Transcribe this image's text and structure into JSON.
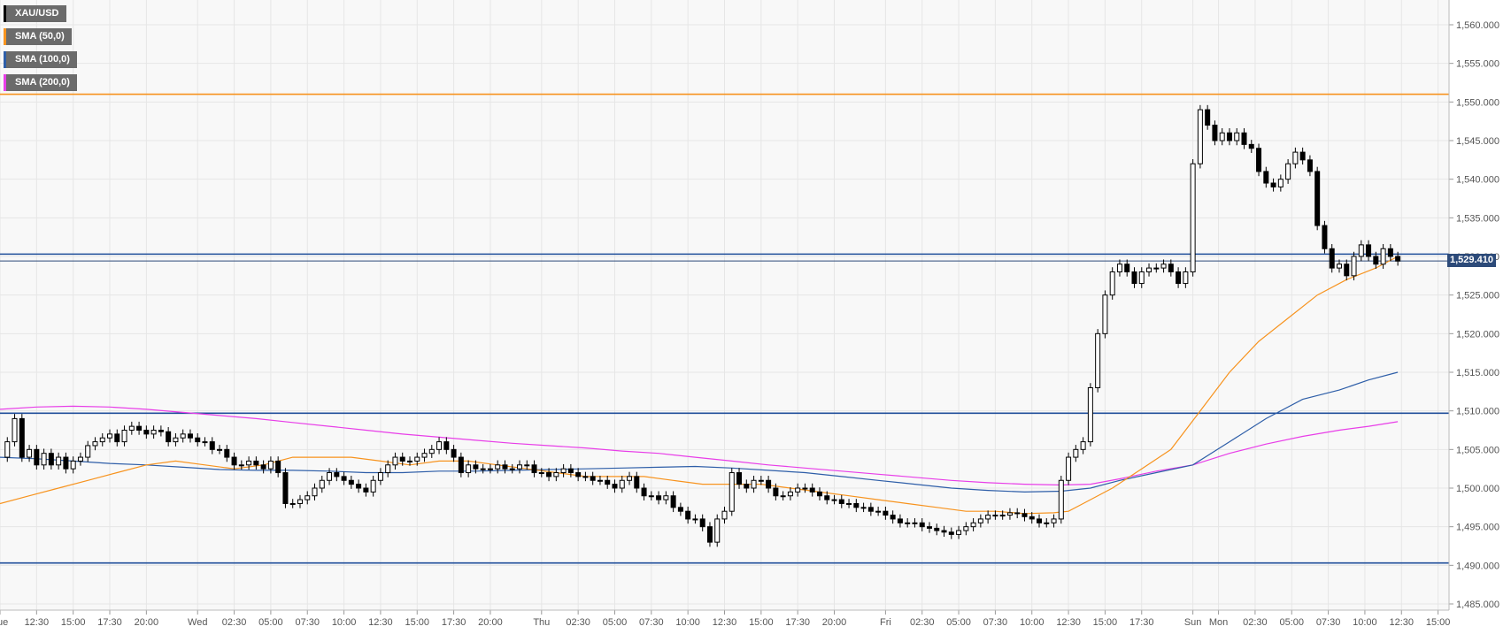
{
  "chart_data": {
    "type": "candlestick",
    "symbol": "XAU/USD",
    "legend": [
      {
        "label": "XAU/USD",
        "color": "#000000"
      },
      {
        "label": "SMA (50,0)",
        "color": "#f7931e"
      },
      {
        "label": "SMA (100,0)",
        "color": "#2e5ea8"
      },
      {
        "label": "SMA (200,0)",
        "color": "#e83ee8"
      }
    ],
    "last_price_label": "1,529.410",
    "last_price": 1529.41,
    "ylim": [
      1485,
      1562
    ],
    "y_ticks": [
      1485,
      1490,
      1495,
      1500,
      1505,
      1510,
      1515,
      1520,
      1525,
      1530,
      1535,
      1540,
      1545,
      1550,
      1555,
      1560
    ],
    "y_tick_labels": [
      "1,485.000",
      "1,490.000",
      "1,495.000",
      "1,500.000",
      "1,505.000",
      "1,510.000",
      "1,515.000",
      "1,520.000",
      "1,525.000",
      "1,530.000",
      "1,535.000",
      "1,540.000",
      "1,545.000",
      "1,550.000",
      "1,555.000",
      "1,560.000"
    ],
    "x_ticks": [
      {
        "t": 0,
        "label": "Tue"
      },
      {
        "t": 10,
        "label": "12:30"
      },
      {
        "t": 20,
        "label": "15:00"
      },
      {
        "t": 30,
        "label": "17:30"
      },
      {
        "t": 40,
        "label": "20:00"
      },
      {
        "t": 54,
        "label": "Wed"
      },
      {
        "t": 64,
        "label": "02:30"
      },
      {
        "t": 74,
        "label": "05:00"
      },
      {
        "t": 84,
        "label": "07:30"
      },
      {
        "t": 94,
        "label": "10:00"
      },
      {
        "t": 104,
        "label": "12:30"
      },
      {
        "t": 114,
        "label": "15:00"
      },
      {
        "t": 124,
        "label": "17:30"
      },
      {
        "t": 134,
        "label": "20:00"
      },
      {
        "t": 148,
        "label": "Thu"
      },
      {
        "t": 158,
        "label": "02:30"
      },
      {
        "t": 168,
        "label": "05:00"
      },
      {
        "t": 178,
        "label": "07:30"
      },
      {
        "t": 188,
        "label": "10:00"
      },
      {
        "t": 198,
        "label": "12:30"
      },
      {
        "t": 208,
        "label": "15:00"
      },
      {
        "t": 218,
        "label": "17:30"
      },
      {
        "t": 228,
        "label": "20:00"
      },
      {
        "t": 242,
        "label": "Fri"
      },
      {
        "t": 252,
        "label": "02:30"
      },
      {
        "t": 262,
        "label": "05:00"
      },
      {
        "t": 272,
        "label": "07:30"
      },
      {
        "t": 282,
        "label": "10:00"
      },
      {
        "t": 292,
        "label": "12:30"
      },
      {
        "t": 302,
        "label": "15:00"
      },
      {
        "t": 312,
        "label": "17:30"
      },
      {
        "t": 326,
        "label": "Sun"
      },
      {
        "t": 333,
        "label": "Mon"
      },
      {
        "t": 343,
        "label": "02:30"
      },
      {
        "t": 353,
        "label": "05:00"
      },
      {
        "t": 363,
        "label": "07:30"
      },
      {
        "t": 373,
        "label": "10:00"
      },
      {
        "t": 383,
        "label": "12:30"
      },
      {
        "t": 393,
        "label": "15:00"
      }
    ],
    "x_range": [
      0,
      396
    ],
    "horizontal_levels": [
      {
        "value": 1551,
        "color": "#f7931e"
      },
      {
        "value": 1530.3,
        "color": "#1f4e9a"
      },
      {
        "value": 1509.7,
        "color": "#1f4e9a"
      },
      {
        "value": 1490.3,
        "color": "#1f4e9a"
      }
    ],
    "candle_close_path": [
      [
        0,
        1504
      ],
      [
        2,
        1506
      ],
      [
        4,
        1509
      ],
      [
        6,
        1504
      ],
      [
        8,
        1505
      ],
      [
        10,
        1503
      ],
      [
        12,
        1504.5
      ],
      [
        14,
        1503
      ],
      [
        16,
        1504
      ],
      [
        18,
        1502.5
      ],
      [
        20,
        1503.5
      ],
      [
        22,
        1504
      ],
      [
        24,
        1505.5
      ],
      [
        26,
        1506
      ],
      [
        28,
        1506.5
      ],
      [
        30,
        1507
      ],
      [
        32,
        1506
      ],
      [
        34,
        1507.5
      ],
      [
        36,
        1508
      ],
      [
        38,
        1507.5
      ],
      [
        40,
        1507
      ],
      [
        42,
        1507.5
      ],
      [
        44,
        1507.3
      ],
      [
        46,
        1506
      ],
      [
        48,
        1506.5
      ],
      [
        50,
        1507
      ],
      [
        52,
        1506.5
      ],
      [
        54,
        1506
      ],
      [
        56,
        1506
      ],
      [
        58,
        1505
      ],
      [
        60,
        1505
      ],
      [
        62,
        1504
      ],
      [
        64,
        1503
      ],
      [
        66,
        1503
      ],
      [
        68,
        1503.5
      ],
      [
        70,
        1503
      ],
      [
        72,
        1502.5
      ],
      [
        74,
        1503.5
      ],
      [
        76,
        1502
      ],
      [
        78,
        1498
      ],
      [
        80,
        1498
      ],
      [
        82,
        1498.5
      ],
      [
        84,
        1499
      ],
      [
        86,
        1500
      ],
      [
        88,
        1501
      ],
      [
        90,
        1502
      ],
      [
        92,
        1501.5
      ],
      [
        94,
        1501
      ],
      [
        96,
        1500.5
      ],
      [
        98,
        1500
      ],
      [
        100,
        1499.5
      ],
      [
        102,
        1501
      ],
      [
        104,
        1502
      ],
      [
        106,
        1503
      ],
      [
        108,
        1504
      ],
      [
        110,
        1503.5
      ],
      [
        112,
        1503.5
      ],
      [
        114,
        1504
      ],
      [
        116,
        1504.5
      ],
      [
        118,
        1505
      ],
      [
        120,
        1506
      ],
      [
        122,
        1505
      ],
      [
        124,
        1504
      ],
      [
        126,
        1502
      ],
      [
        128,
        1503
      ],
      [
        130,
        1502.5
      ],
      [
        132,
        1502.5
      ],
      [
        134,
        1502.5
      ],
      [
        136,
        1503
      ],
      [
        138,
        1502.5
      ],
      [
        140,
        1502.5
      ],
      [
        142,
        1503
      ],
      [
        144,
        1503
      ],
      [
        146,
        1502
      ],
      [
        148,
        1502
      ],
      [
        150,
        1501.5
      ],
      [
        152,
        1502
      ],
      [
        154,
        1502.5
      ],
      [
        156,
        1502
      ],
      [
        158,
        1501.5
      ],
      [
        160,
        1501.5
      ],
      [
        162,
        1501
      ],
      [
        164,
        1501
      ],
      [
        166,
        1500.5
      ],
      [
        168,
        1500
      ],
      [
        170,
        1501
      ],
      [
        172,
        1501.5
      ],
      [
        174,
        1500
      ],
      [
        176,
        1499
      ],
      [
        178,
        1499
      ],
      [
        180,
        1498.5
      ],
      [
        182,
        1499
      ],
      [
        184,
        1497.5
      ],
      [
        186,
        1497
      ],
      [
        188,
        1496
      ],
      [
        190,
        1496
      ],
      [
        192,
        1495
      ],
      [
        194,
        1493
      ],
      [
        196,
        1496
      ],
      [
        198,
        1497
      ],
      [
        200,
        1502
      ],
      [
        202,
        1500.5
      ],
      [
        204,
        1500
      ],
      [
        206,
        1501
      ],
      [
        208,
        1501
      ],
      [
        210,
        1500
      ],
      [
        212,
        1499
      ],
      [
        214,
        1499
      ],
      [
        216,
        1499.5
      ],
      [
        218,
        1500
      ],
      [
        220,
        1500
      ],
      [
        222,
        1499.5
      ],
      [
        224,
        1499
      ],
      [
        226,
        1498.5
      ],
      [
        228,
        1498.5
      ],
      [
        230,
        1498
      ],
      [
        232,
        1498
      ],
      [
        234,
        1497.5
      ],
      [
        236,
        1497.5
      ],
      [
        238,
        1497
      ],
      [
        240,
        1497
      ],
      [
        242,
        1496.5
      ],
      [
        244,
        1496
      ],
      [
        246,
        1495.5
      ],
      [
        248,
        1495.5
      ],
      [
        250,
        1495.5
      ],
      [
        252,
        1495
      ],
      [
        254,
        1494.8
      ],
      [
        256,
        1494.5
      ],
      [
        258,
        1494.3
      ],
      [
        260,
        1494
      ],
      [
        262,
        1494.5
      ],
      [
        264,
        1495
      ],
      [
        266,
        1495.5
      ],
      [
        268,
        1496
      ],
      [
        270,
        1496.5
      ],
      [
        272,
        1496.5
      ],
      [
        274,
        1496.5
      ],
      [
        276,
        1496.8
      ],
      [
        278,
        1496.7
      ],
      [
        280,
        1496.3
      ],
      [
        282,
        1496
      ],
      [
        284,
        1495.5
      ],
      [
        286,
        1495.5
      ],
      [
        288,
        1496
      ],
      [
        290,
        1501
      ],
      [
        292,
        1504
      ],
      [
        294,
        1505
      ],
      [
        296,
        1506
      ],
      [
        298,
        1513
      ],
      [
        300,
        1520
      ],
      [
        302,
        1525
      ],
      [
        304,
        1528
      ],
      [
        306,
        1529
      ],
      [
        308,
        1528
      ],
      [
        310,
        1526.5
      ],
      [
        312,
        1528
      ],
      [
        314,
        1528.5
      ],
      [
        316,
        1528.5
      ],
      [
        318,
        1529
      ],
      [
        320,
        1528
      ],
      [
        322,
        1526.5
      ],
      [
        324,
        1528
      ],
      [
        326,
        1542
      ],
      [
        328,
        1549
      ],
      [
        330,
        1547
      ],
      [
        332,
        1545
      ],
      [
        334,
        1546
      ],
      [
        336,
        1545
      ],
      [
        338,
        1546
      ],
      [
        340,
        1544.5
      ],
      [
        342,
        1544
      ],
      [
        344,
        1541
      ],
      [
        346,
        1539.5
      ],
      [
        348,
        1539
      ],
      [
        350,
        1540
      ],
      [
        352,
        1542
      ],
      [
        354,
        1543.5
      ],
      [
        356,
        1542.5
      ],
      [
        358,
        1541
      ],
      [
        360,
        1534
      ],
      [
        362,
        1531
      ],
      [
        364,
        1528.5
      ],
      [
        366,
        1529
      ],
      [
        368,
        1527.5
      ],
      [
        370,
        1530
      ],
      [
        372,
        1531.5
      ],
      [
        374,
        1530
      ],
      [
        376,
        1529
      ],
      [
        378,
        1531
      ],
      [
        380,
        1530
      ],
      [
        382,
        1529.4
      ]
    ],
    "sma_50": [
      [
        0,
        1498
      ],
      [
        8,
        1499
      ],
      [
        16,
        1500
      ],
      [
        24,
        1501
      ],
      [
        32,
        1502
      ],
      [
        40,
        1503
      ],
      [
        48,
        1503.5
      ],
      [
        56,
        1503
      ],
      [
        64,
        1502.5
      ],
      [
        72,
        1503
      ],
      [
        80,
        1504
      ],
      [
        88,
        1504
      ],
      [
        96,
        1504
      ],
      [
        104,
        1503.5
      ],
      [
        112,
        1503
      ],
      [
        120,
        1503.5
      ],
      [
        128,
        1503.5
      ],
      [
        136,
        1503
      ],
      [
        144,
        1502.5
      ],
      [
        152,
        1502
      ],
      [
        160,
        1501.5
      ],
      [
        168,
        1501.5
      ],
      [
        176,
        1501.5
      ],
      [
        184,
        1501
      ],
      [
        192,
        1500.5
      ],
      [
        200,
        1500.5
      ],
      [
        208,
        1500.5
      ],
      [
        216,
        1500
      ],
      [
        224,
        1499.5
      ],
      [
        232,
        1499
      ],
      [
        240,
        1498.5
      ],
      [
        248,
        1498
      ],
      [
        256,
        1497.5
      ],
      [
        264,
        1497
      ],
      [
        272,
        1497
      ],
      [
        280,
        1496.7
      ],
      [
        288,
        1496.8
      ],
      [
        292,
        1497
      ],
      [
        296,
        1498
      ],
      [
        304,
        1500
      ],
      [
        312,
        1502.5
      ],
      [
        320,
        1505
      ],
      [
        328,
        1510
      ],
      [
        336,
        1515
      ],
      [
        344,
        1519
      ],
      [
        352,
        1522
      ],
      [
        360,
        1525
      ],
      [
        368,
        1527
      ],
      [
        376,
        1528.5
      ],
      [
        382,
        1530
      ]
    ],
    "sma_100": [
      [
        0,
        1504
      ],
      [
        10,
        1503.8
      ],
      [
        20,
        1503.5
      ],
      [
        30,
        1503.2
      ],
      [
        40,
        1503
      ],
      [
        50,
        1502.7
      ],
      [
        60,
        1502.4
      ],
      [
        70,
        1502.3
      ],
      [
        80,
        1502.3
      ],
      [
        90,
        1502.2
      ],
      [
        100,
        1502
      ],
      [
        110,
        1502
      ],
      [
        120,
        1502.2
      ],
      [
        130,
        1502.2
      ],
      [
        140,
        1502.3
      ],
      [
        150,
        1502.4
      ],
      [
        160,
        1502.5
      ],
      [
        170,
        1502.6
      ],
      [
        180,
        1502.7
      ],
      [
        190,
        1502.8
      ],
      [
        200,
        1502.6
      ],
      [
        210,
        1502.3
      ],
      [
        220,
        1502
      ],
      [
        230,
        1501.5
      ],
      [
        240,
        1501
      ],
      [
        250,
        1500.5
      ],
      [
        260,
        1500
      ],
      [
        270,
        1499.7
      ],
      [
        280,
        1499.5
      ],
      [
        290,
        1499.6
      ],
      [
        298,
        1500
      ],
      [
        306,
        1501
      ],
      [
        316,
        1502
      ],
      [
        326,
        1503
      ],
      [
        336,
        1506
      ],
      [
        346,
        1509
      ],
      [
        356,
        1511.5
      ],
      [
        366,
        1512.7
      ],
      [
        374,
        1514
      ],
      [
        382,
        1515
      ]
    ],
    "sma_200": [
      [
        0,
        1510.2
      ],
      [
        10,
        1510.5
      ],
      [
        20,
        1510.6
      ],
      [
        30,
        1510.5
      ],
      [
        40,
        1510.2
      ],
      [
        50,
        1509.8
      ],
      [
        60,
        1509.4
      ],
      [
        70,
        1509
      ],
      [
        80,
        1508.5
      ],
      [
        90,
        1508
      ],
      [
        100,
        1507.5
      ],
      [
        110,
        1507
      ],
      [
        120,
        1506.6
      ],
      [
        130,
        1506.2
      ],
      [
        140,
        1505.8
      ],
      [
        150,
        1505.5
      ],
      [
        160,
        1505.2
      ],
      [
        170,
        1504.8
      ],
      [
        180,
        1504.5
      ],
      [
        190,
        1504
      ],
      [
        200,
        1503.5
      ],
      [
        210,
        1503
      ],
      [
        220,
        1502.6
      ],
      [
        230,
        1502.2
      ],
      [
        240,
        1501.8
      ],
      [
        250,
        1501.4
      ],
      [
        260,
        1501
      ],
      [
        270,
        1500.7
      ],
      [
        280,
        1500.5
      ],
      [
        290,
        1500.4
      ],
      [
        298,
        1500.5
      ],
      [
        306,
        1501.2
      ],
      [
        316,
        1502.2
      ],
      [
        326,
        1503
      ],
      [
        336,
        1504.5
      ],
      [
        346,
        1505.7
      ],
      [
        356,
        1506.7
      ],
      [
        366,
        1507.5
      ],
      [
        374,
        1508
      ],
      [
        382,
        1508.6
      ]
    ]
  }
}
